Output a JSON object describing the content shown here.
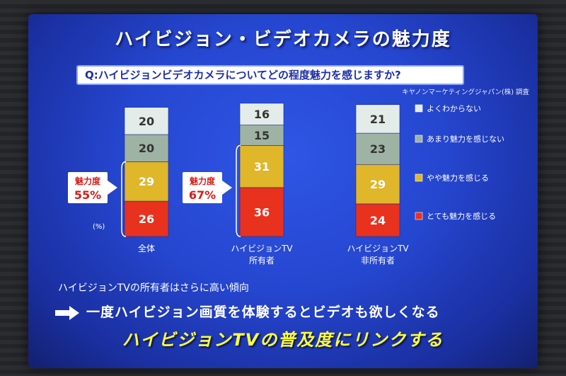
{
  "slide": {
    "title": "ハイビジョン・ビデオカメラの魅力度",
    "question": "Q:ハイビジョンビデオカメラについてどの程度魅力を感じますか?",
    "source": "キヤノンマーケティングジャパン(株) 調査",
    "finding": "ハイビジョンTVの所有者はさらに高い傾向",
    "conclusion": "一度ハイビジョン画質を体験するとビデオも欲しくなる",
    "link_text": "ハイビジョンTVの普及度にリンクする"
  },
  "chart_data": {
    "type": "bar",
    "stacked": true,
    "unit_label": "(%)",
    "categories": [
      "全体",
      "ハイビジョンTV\n所有者",
      "ハイビジョンTV\n非所有者"
    ],
    "series": [
      {
        "name": "とても魅力を感じる",
        "values": [
          26,
          36,
          24
        ],
        "color": "#e8321e"
      },
      {
        "name": "やや魅力を感じる",
        "values": [
          29,
          31,
          29
        ],
        "color": "#e0b62a"
      },
      {
        "name": "あまり魅力を感じない",
        "values": [
          20,
          15,
          23
        ],
        "color": "#9fb3a4"
      },
      {
        "name": "よくわからない",
        "values": [
          20,
          16,
          21
        ],
        "color": "#e3ece8"
      }
    ],
    "callouts": [
      {
        "label": "魅力度",
        "value": "55%"
      },
      {
        "label": "魅力度",
        "value": "67%"
      }
    ],
    "legend_position": "right",
    "ylim": [
      0,
      100
    ]
  }
}
